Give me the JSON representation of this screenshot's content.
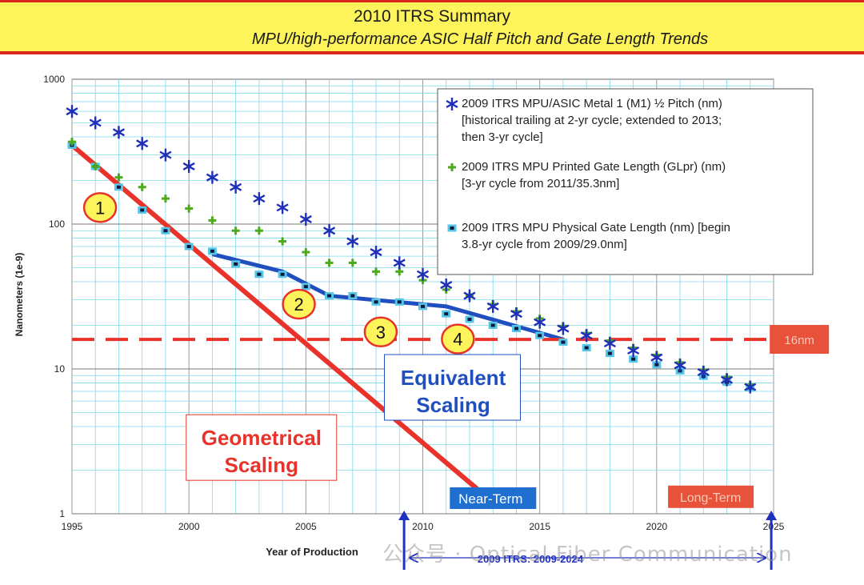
{
  "banner": {
    "title": "2010 ITRS Summary",
    "subtitle": "MPU/high-performance ASIC Half Pitch and Gate Length Trends"
  },
  "chart_data": {
    "type": "scatter",
    "xlabel": "Year of Production",
    "ylabel": "Nanometers (1e-9)",
    "xlim": [
      1995,
      2025
    ],
    "ylim": [
      1,
      1000
    ],
    "y_scale": "log",
    "x_ticks": [
      "1995",
      "2000",
      "2005",
      "2010",
      "2015",
      "2020",
      "2025"
    ],
    "y_ticks": [
      "1",
      "10",
      "100",
      "1000"
    ],
    "grid": true,
    "legend_position": "top-right",
    "series": [
      {
        "name": "2009 ITRS MPU/ASIC Metal 1 (M1) ½ Pitch (nm)",
        "name_lines": [
          "2009 ITRS MPU/ASIC Metal 1 (M1) ½ Pitch (nm)",
          "[historical trailing at 2-yr cycle; extended to 2013;",
          "then 3-yr cycle]"
        ],
        "marker": "asterisk",
        "color": "#1f2fb8",
        "x": [
          1995,
          1996,
          1997,
          1998,
          1999,
          2000,
          2001,
          2002,
          2003,
          2004,
          2005,
          2006,
          2007,
          2008,
          2009,
          2010,
          2011,
          2012,
          2013,
          2014,
          2015,
          2016,
          2017,
          2018,
          2019,
          2020,
          2021,
          2022,
          2023,
          2024
        ],
        "y": [
          600,
          500,
          430,
          360,
          300,
          250,
          210,
          180,
          150,
          130,
          108,
          90,
          76,
          64,
          54,
          45,
          38,
          32,
          27,
          24,
          21,
          19,
          17,
          15,
          13.4,
          12,
          10.6,
          9.5,
          8.4,
          7.5
        ]
      },
      {
        "name": "2009 ITRS MPU Printed Gate Length (GLpr) (nm)",
        "name_lines": [
          "2009 ITRS MPU Printed Gate Length (GLpr) (nm)",
          "[3-yr cycle from 2011/35.3nm]"
        ],
        "marker": "plus",
        "color": "#4caa1c",
        "x": [
          1995,
          1996,
          1997,
          1998,
          1999,
          2000,
          2001,
          2002,
          2003,
          2004,
          2005,
          2006,
          2007,
          2008,
          2009,
          2010,
          2011,
          2012,
          2013,
          2014,
          2015,
          2016,
          2017,
          2018,
          2019,
          2020,
          2021,
          2022,
          2023,
          2024
        ],
        "y": [
          370,
          250,
          210,
          180,
          150,
          128,
          106,
          90,
          90,
          76,
          64,
          54,
          54,
          47,
          47,
          41,
          35.3,
          32,
          28,
          25,
          22.3,
          19.8,
          17.7,
          15.7,
          14,
          12.5,
          11.1,
          9.9,
          8.8,
          7.8
        ]
      },
      {
        "name": "2009 ITRS MPU Physical Gate Length (nm) [begin 3.8-yr cycle from 2009/29.0nm]",
        "name_lines": [
          "2009 ITRS MPU Physical Gate Length (nm) [begin",
          "3.8-yr cycle from 2009/29.0nm]"
        ],
        "marker": "square",
        "color": "#56c5e8",
        "x": [
          1995,
          1996,
          1997,
          1998,
          1999,
          2000,
          2001,
          2002,
          2003,
          2004,
          2005,
          2006,
          2007,
          2008,
          2009,
          2010,
          2011,
          2012,
          2013,
          2014,
          2015,
          2016,
          2017,
          2018,
          2019,
          2020,
          2021,
          2022,
          2023,
          2024
        ],
        "y": [
          350,
          250,
          180,
          125,
          90,
          70,
          65,
          53,
          45,
          45,
          37,
          32,
          32,
          29,
          29,
          27,
          24,
          22,
          20,
          19,
          17,
          15.3,
          14,
          12.8,
          11.7,
          10.7,
          9.7,
          8.9,
          8.1,
          7.4
        ]
      }
    ],
    "annotations": [
      {
        "label": "1",
        "x": 1996.2,
        "y": 130
      },
      {
        "label": "2",
        "x": 2004.7,
        "y": 28
      },
      {
        "label": "3",
        "x": 2008.2,
        "y": 18
      },
      {
        "label": "4",
        "x": 2011.5,
        "y": 16.1
      },
      {
        "label": "Geometrical Scaling",
        "x": 2003.1,
        "y": 2.76
      },
      {
        "label": "Equivalent Scaling",
        "x": 2011.3,
        "y": 7.0
      },
      {
        "label": "16nm",
        "x": 2026.1,
        "y": 16
      },
      {
        "label": "Near-Term",
        "x": 2012.9,
        "y": 1.29
      },
      {
        "label": "Long-Term",
        "x": 2022.3,
        "y": 1.31
      },
      {
        "label": "2009 ITRS: 2009-2024",
        "x": 2014.6,
        "y": 0.79
      }
    ],
    "trend_lines": [
      {
        "label": "Geometrical Scaling",
        "color": "#e8322a",
        "x": [
          1995,
          2013
        ],
        "y": [
          350,
          1.2
        ]
      },
      {
        "label": "Equivalent Scaling",
        "color": "#1f4fbf",
        "x": [
          2001,
          2004,
          2006,
          2011,
          2016
        ],
        "y": [
          62,
          47,
          32,
          27,
          16
        ]
      },
      {
        "label": "16nm",
        "color": "#e8322a",
        "dashed": true,
        "x": [
          1995,
          2025
        ],
        "y": [
          16,
          16
        ]
      }
    ]
  },
  "watermark": "公众号 · Optical Fiber Communication"
}
